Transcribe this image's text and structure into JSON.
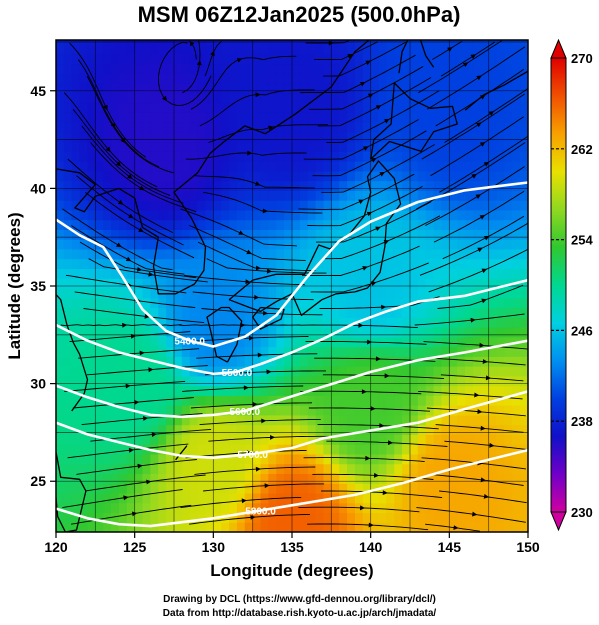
{
  "chart_data": {
    "type": "heatmap",
    "title": "MSM 06Z12Jan2025 (500.0hPa)",
    "xlabel": "Longitude (degrees)",
    "ylabel": "Latitude  (degrees)",
    "xlim": [
      120,
      150
    ],
    "ylim": [
      22.4,
      47.6
    ],
    "x_ticks": [
      120,
      125,
      130,
      135,
      140,
      145,
      150
    ],
    "y_ticks": [
      25,
      30,
      35,
      40,
      45
    ],
    "grid": true,
    "colorbar": {
      "min": 230,
      "max": 270,
      "ticks": [
        230,
        238,
        246,
        254,
        262,
        270
      ],
      "placement": "right",
      "colors": [
        "#d000a0",
        "#7000c8",
        "#1010c8",
        "#0040e0",
        "#0090f0",
        "#00d0e0",
        "#00d890",
        "#30c830",
        "#90d820",
        "#e8e000",
        "#f8a000",
        "#f05000",
        "#e00000"
      ]
    },
    "field_samples": [
      {
        "lon": 127,
        "lat": 42,
        "value": 236
      },
      {
        "lon": 135,
        "lat": 44,
        "value": 237
      },
      {
        "lon": 145,
        "lat": 44,
        "value": 240
      },
      {
        "lon": 130,
        "lat": 33,
        "value": 243
      },
      {
        "lon": 140,
        "lat": 35,
        "value": 246
      },
      {
        "lon": 125,
        "lat": 30,
        "value": 250
      },
      {
        "lon": 140,
        "lat": 29,
        "value": 254
      },
      {
        "lon": 130,
        "lat": 26,
        "value": 259
      },
      {
        "lon": 145,
        "lat": 25,
        "value": 263
      },
      {
        "lon": 135,
        "lat": 23,
        "value": 266
      }
    ],
    "contours": [
      {
        "value": 5400,
        "label": "5400.0",
        "label_pos": [
          128.5,
          32.2
        ],
        "points": [
          [
            120,
            38.4
          ],
          [
            121.5,
            37.6
          ],
          [
            123,
            37
          ],
          [
            124.2,
            35.5
          ],
          [
            125.5,
            33.8
          ],
          [
            127,
            32.7
          ],
          [
            128.5,
            32.2
          ],
          [
            130,
            31.9
          ],
          [
            132,
            32.4
          ],
          [
            134,
            33.5
          ],
          [
            136,
            35.5
          ],
          [
            138,
            37.3
          ],
          [
            140,
            38.3
          ],
          [
            143,
            39.3
          ],
          [
            146,
            39.9
          ],
          [
            150,
            40.3
          ]
        ]
      },
      {
        "value": 5500,
        "label": "5500.0",
        "label_pos": [
          131.5,
          30.6
        ],
        "points": [
          [
            120,
            33
          ],
          [
            122,
            32.2
          ],
          [
            124,
            31.6
          ],
          [
            126,
            31.2
          ],
          [
            128,
            30.8
          ],
          [
            130,
            30.5
          ],
          [
            131.5,
            30.6
          ],
          [
            133,
            31
          ],
          [
            135,
            31.6
          ],
          [
            137,
            32.3
          ],
          [
            139,
            33.1
          ],
          [
            141,
            33.7
          ],
          [
            143,
            34.2
          ],
          [
            146,
            34.5
          ],
          [
            150,
            35.3
          ]
        ]
      },
      {
        "value": 5600,
        "label": "5600.0",
        "label_pos": [
          132,
          28.6
        ],
        "points": [
          [
            120,
            29.9
          ],
          [
            122,
            29.3
          ],
          [
            124,
            28.8
          ],
          [
            126,
            28.4
          ],
          [
            128,
            28.3
          ],
          [
            130,
            28.4
          ],
          [
            132,
            28.6
          ],
          [
            134,
            29.1
          ],
          [
            136,
            29.6
          ],
          [
            138,
            30.1
          ],
          [
            140,
            30.6
          ],
          [
            143,
            31.2
          ],
          [
            146,
            31.6
          ],
          [
            150,
            32.2
          ]
        ]
      },
      {
        "value": 5700,
        "label": "5700.0",
        "label_pos": [
          132.5,
          26.4
        ],
        "points": [
          [
            120,
            28
          ],
          [
            122,
            27.4
          ],
          [
            124,
            27
          ],
          [
            126,
            26.6
          ],
          [
            128,
            26.3
          ],
          [
            130,
            26.2
          ],
          [
            132.5,
            26.4
          ],
          [
            135,
            26.7
          ],
          [
            137,
            27.2
          ],
          [
            140,
            27.6
          ],
          [
            143,
            28
          ],
          [
            146,
            28.7
          ],
          [
            150,
            29.6
          ]
        ]
      },
      {
        "value": 5800,
        "label": "5800.0",
        "label_pos": [
          133,
          23.5
        ],
        "points": [
          [
            120,
            23.6
          ],
          [
            122,
            23.1
          ],
          [
            124,
            22.8
          ],
          [
            126,
            22.7
          ],
          [
            128,
            22.9
          ],
          [
            130,
            23.1
          ],
          [
            133,
            23.5
          ],
          [
            136,
            23.9
          ],
          [
            139,
            24.3
          ],
          [
            142,
            24.9
          ],
          [
            145,
            25.6
          ],
          [
            150,
            26.6
          ]
        ]
      }
    ]
  },
  "credits": [
    "Drawing by DCL (https://www.gfd-dennou.org/library/dcl/)",
    "Data from http://database.rish.kyoto-u.ac.jp/arch/jmadata/"
  ]
}
